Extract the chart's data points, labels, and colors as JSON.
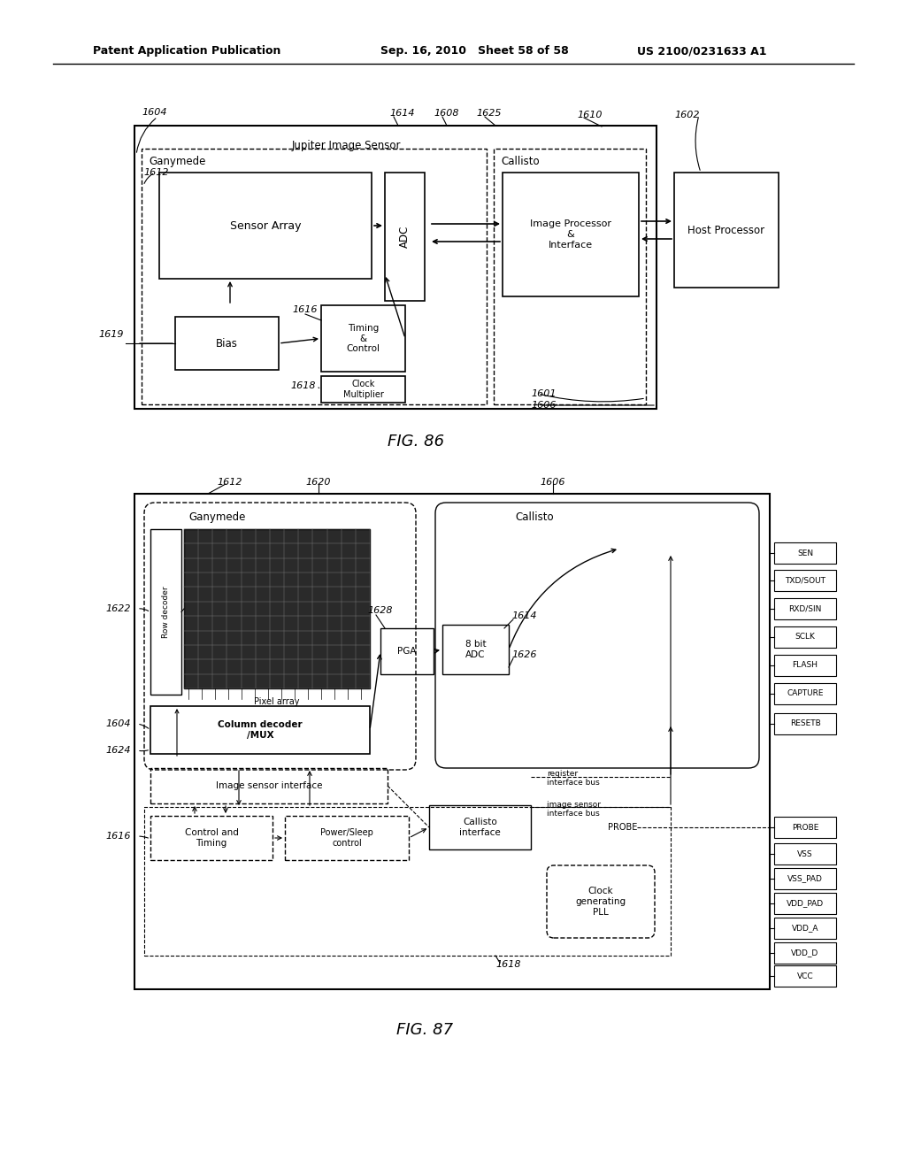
{
  "bg_color": "#ffffff",
  "line_color": "#000000",
  "header_left": "Patent Application Publication",
  "header_mid": "Sep. 16, 2010  Sheet 58 of 58",
  "header_right": "US 2100/0231633 A1",
  "fig86_title": "FIG. 86",
  "fig87_title": "FIG. 87"
}
